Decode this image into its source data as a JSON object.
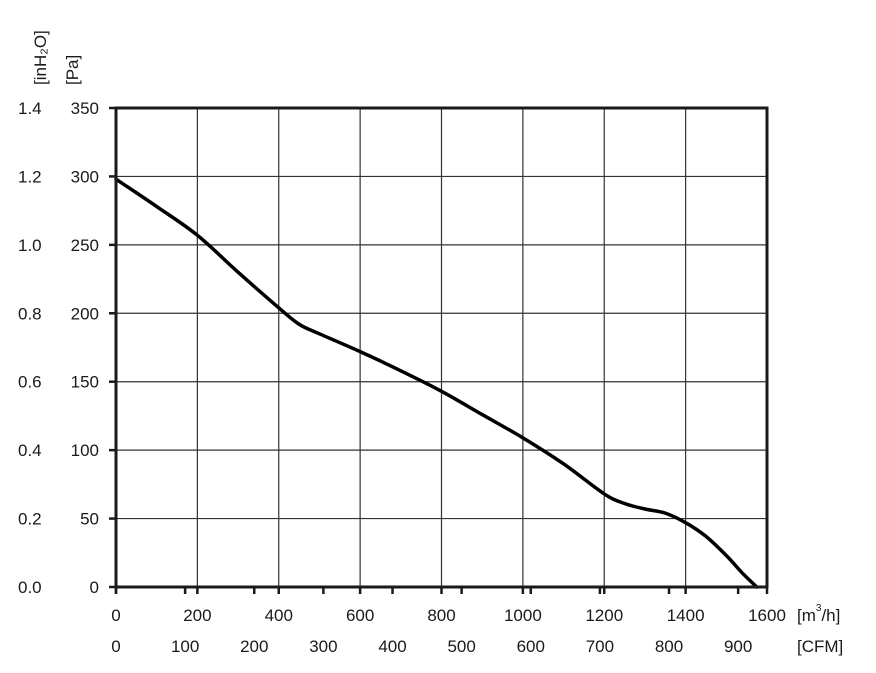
{
  "chart_data": {
    "type": "line",
    "title": "",
    "x_primary": {
      "unit_base": "[m",
      "unit_sup": "3",
      "unit_tail": "/h]",
      "range": [
        0,
        1600
      ],
      "ticks": [
        0,
        200,
        400,
        600,
        800,
        1000,
        1200,
        1400,
        1600
      ]
    },
    "x_secondary": {
      "unit": "[CFM]",
      "ticks": [
        0,
        100,
        200,
        300,
        400,
        500,
        600,
        700,
        800,
        900
      ]
    },
    "y_primary": {
      "unit": "[Pa]",
      "range": [
        0,
        350
      ],
      "ticks": [
        0,
        50,
        100,
        150,
        200,
        250,
        300,
        350
      ]
    },
    "y_secondary": {
      "unit": "[inH₂O]",
      "ticks": [
        "0.0",
        "0.2",
        "0.4",
        "0.6",
        "0.8",
        "1.0",
        "1.2",
        "1.4"
      ]
    },
    "grid": true,
    "series": [
      {
        "color": "#000000",
        "x": [
          0,
          100,
          200,
          300,
          400,
          450,
          500,
          600,
          700,
          800,
          900,
          1000,
          1100,
          1200,
          1250,
          1300,
          1350,
          1400,
          1450,
          1500,
          1540,
          1575
        ],
        "y": [
          298,
          278,
          257,
          230,
          204,
          192,
          185,
          172,
          158,
          143,
          126,
          109,
          90,
          68,
          61,
          57,
          54,
          47,
          37,
          23,
          10,
          0
        ]
      }
    ]
  }
}
